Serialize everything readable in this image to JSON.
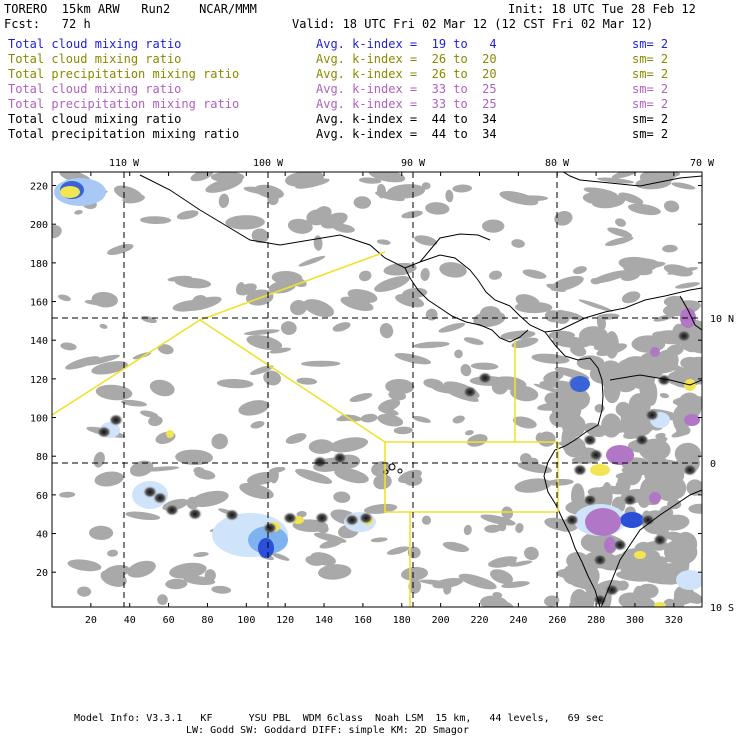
{
  "header": {
    "model_name": "TORERO  15km ARW   Run2    NCAR/MMM",
    "init": "Init: 18 UTC Tue 28 Feb 12",
    "fcst": "Fcst:   72 h",
    "valid": "Valid: 18 UTC Fri 02 Mar 12 (12 CST Fri 02 Mar 12)"
  },
  "legend": [
    {
      "field": "Total cloud mixing ratio",
      "index": "Avg. k-index =  19 to   4",
      "sm": "sm= 2",
      "color": "#1f1fd6"
    },
    {
      "field": "Total cloud mixing ratio",
      "index": "Avg. k-index =  26 to  20",
      "sm": "sm= 2",
      "color": "#8a8a00"
    },
    {
      "field": "Total precipitation mixing ratio",
      "index": "Avg. k-index =  26 to  20",
      "sm": "sm= 2",
      "color": "#8a8a00"
    },
    {
      "field": "Total cloud mixing ratio",
      "index": "Avg. k-index =  33 to  25",
      "sm": "sm= 2",
      "color": "#b060c0"
    },
    {
      "field": "Total precipitation mixing ratio",
      "index": "Avg. k-index =  33 to  25",
      "sm": "sm= 2",
      "color": "#b060c0"
    },
    {
      "field": "Total cloud mixing ratio",
      "index": "Avg. k-index =  44 to  34",
      "sm": "sm= 2",
      "color": "#000000"
    },
    {
      "field": "Total precipitation mixing ratio",
      "index": "Avg. k-index =  44 to  34",
      "sm": "sm= 2",
      "color": "#000000"
    }
  ],
  "map": {
    "lon_labels": [
      "110 W",
      "100 W",
      "90 W",
      "80 W",
      "70 W"
    ],
    "lat_labels": [
      "10 N",
      "0",
      "10 S"
    ],
    "x_ticks": [
      "20",
      "40",
      "60",
      "80",
      "100",
      "120",
      "140",
      "160",
      "180",
      "200",
      "220",
      "240",
      "260",
      "280",
      "300",
      "320"
    ],
    "y_ticks": [
      "220",
      "200",
      "180",
      "160",
      "140",
      "120",
      "100",
      "80",
      "60",
      "40",
      "20"
    ]
  },
  "footer": {
    "line1": "Model Info: V3.3.1   KF      YSU PBL  WDM 6class  Noah LSM  15 km,   44 levels,   69 sec",
    "line2": "LW: Godd SW: Goddard DIFF: simple KM: 2D Smagor"
  }
}
